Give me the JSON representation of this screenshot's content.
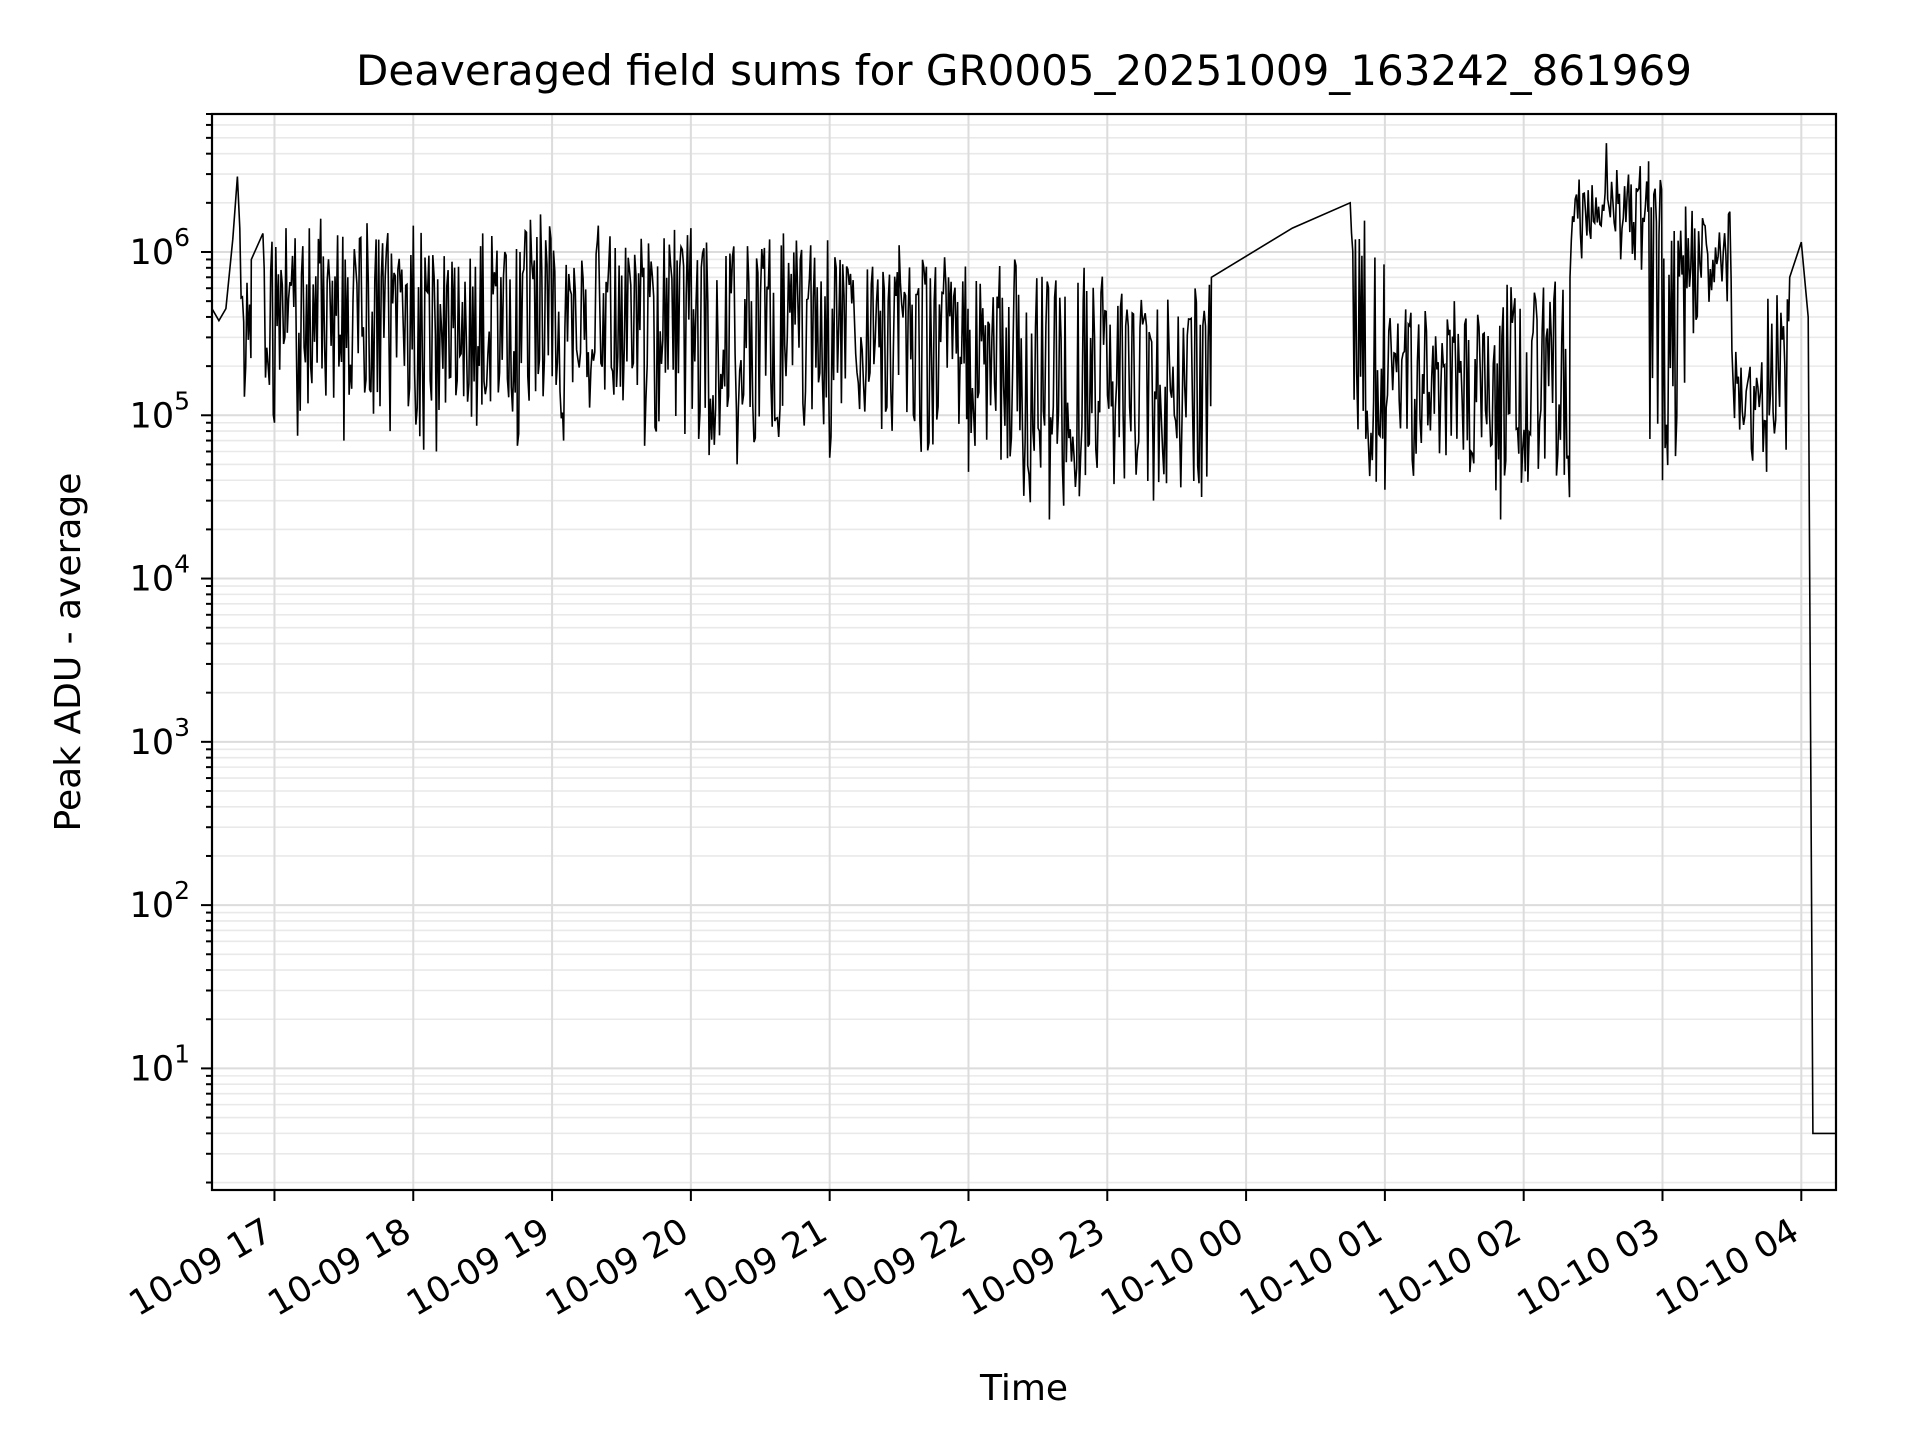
{
  "chart_data": {
    "type": "line",
    "title": "Deaveraged field sums for GR0005_20251009_163242_861969",
    "xlabel": "Time",
    "ylabel": "Peak ADU - average",
    "yscale": "log",
    "ylim": [
      1.8,
      7000000
    ],
    "xlim": [
      "2025-10-09 16:33",
      "2025-10-10 04:15"
    ],
    "grid": {
      "major": true,
      "minor_y": true
    },
    "line_color": "#000000",
    "x_ticks": [
      {
        "value": "2025-10-09 17:00",
        "label": "10-09 17"
      },
      {
        "value": "2025-10-09 18:00",
        "label": "10-09 18"
      },
      {
        "value": "2025-10-09 19:00",
        "label": "10-09 19"
      },
      {
        "value": "2025-10-09 20:00",
        "label": "10-09 20"
      },
      {
        "value": "2025-10-09 21:00",
        "label": "10-09 21"
      },
      {
        "value": "2025-10-09 22:00",
        "label": "10-09 22"
      },
      {
        "value": "2025-10-09 23:00",
        "label": "10-09 23"
      },
      {
        "value": "2025-10-10 00:00",
        "label": "10-10 00"
      },
      {
        "value": "2025-10-10 01:00",
        "label": "10-10 01"
      },
      {
        "value": "2025-10-10 02:00",
        "label": "10-10 02"
      },
      {
        "value": "2025-10-10 03:00",
        "label": "10-10 03"
      },
      {
        "value": "2025-10-10 04:00",
        "label": "10-10 04"
      }
    ],
    "y_ticks": [
      {
        "value": 10,
        "base": "10",
        "exp": "1"
      },
      {
        "value": 100,
        "base": "10",
        "exp": "2"
      },
      {
        "value": 1000,
        "base": "10",
        "exp": "3"
      },
      {
        "value": 10000,
        "base": "10",
        "exp": "4"
      },
      {
        "value": 100000,
        "base": "10",
        "exp": "5"
      },
      {
        "value": 1000000,
        "base": "10",
        "exp": "6"
      }
    ],
    "series": [
      {
        "points": [
          [
            "2025-10-09 16:33",
            450000
          ],
          [
            "2025-10-09 16:36",
            380000
          ],
          [
            "2025-10-09 16:39",
            450000
          ],
          [
            "2025-10-09 16:42",
            1200000
          ],
          [
            "2025-10-09 16:44",
            2900000
          ],
          [
            "2025-10-09 16:45",
            1400000
          ],
          [
            "2025-10-09 16:47",
            130000
          ],
          [
            "2025-10-09 16:50",
            900000
          ],
          [
            "2025-10-09 16:55",
            1300000
          ],
          [
            "2025-10-09 17:00",
            90000
          ],
          [
            "2025-10-09 17:05",
            1400000
          ],
          [
            "2025-10-09 17:10",
            75000
          ],
          [
            "2025-10-09 17:20",
            1600000
          ],
          [
            "2025-10-09 17:30",
            70000
          ],
          [
            "2025-10-09 17:40",
            1500000
          ],
          [
            "2025-10-09 17:50",
            80000
          ],
          [
            "2025-10-09 18:00",
            1450000
          ],
          [
            "2025-10-09 18:10",
            60000
          ],
          [
            "2025-10-09 18:30",
            1300000
          ],
          [
            "2025-10-09 18:45",
            65000
          ],
          [
            "2025-10-09 18:55",
            1700000
          ],
          [
            "2025-10-09 19:05",
            70000
          ],
          [
            "2025-10-09 19:20",
            1450000
          ],
          [
            "2025-10-09 19:40",
            65000
          ],
          [
            "2025-10-09 20:00",
            1400000
          ],
          [
            "2025-10-09 20:20",
            50000
          ],
          [
            "2025-10-09 20:40",
            1300000
          ],
          [
            "2025-10-09 21:00",
            55000
          ],
          [
            "2025-10-09 21:30",
            1100000
          ],
          [
            "2025-10-09 22:00",
            45000
          ],
          [
            "2025-10-09 22:20",
            900000
          ],
          [
            "2025-10-09 22:35",
            23000
          ],
          [
            "2025-10-09 22:50",
            800000
          ],
          [
            "2025-10-09 23:20",
            30000
          ],
          [
            "2025-10-09 23:45",
            700000
          ],
          [
            "2025-10-10 00:20",
            1400000
          ],
          [
            "2025-10-10 00:45",
            2000000
          ],
          [
            "2025-10-10 01:00",
            35000
          ],
          [
            "2025-10-10 01:30",
            500000
          ],
          [
            "2025-10-10 01:50",
            23000
          ],
          [
            "2025-10-10 02:20",
            700000
          ],
          [
            "2025-10-10 02:54",
            3600000
          ],
          [
            "2025-10-10 03:00",
            40000
          ],
          [
            "2025-10-10 03:10",
            1900000
          ],
          [
            "2025-10-10 03:30",
            250000
          ],
          [
            "2025-10-10 03:45",
            45000
          ],
          [
            "2025-10-10 03:55",
            700000
          ],
          [
            "2025-10-10 04:00",
            1150000
          ],
          [
            "2025-10-10 04:03",
            400000
          ],
          [
            "2025-10-10 04:05",
            4
          ],
          [
            "2025-10-10 04:15",
            4
          ]
        ]
      }
    ]
  }
}
